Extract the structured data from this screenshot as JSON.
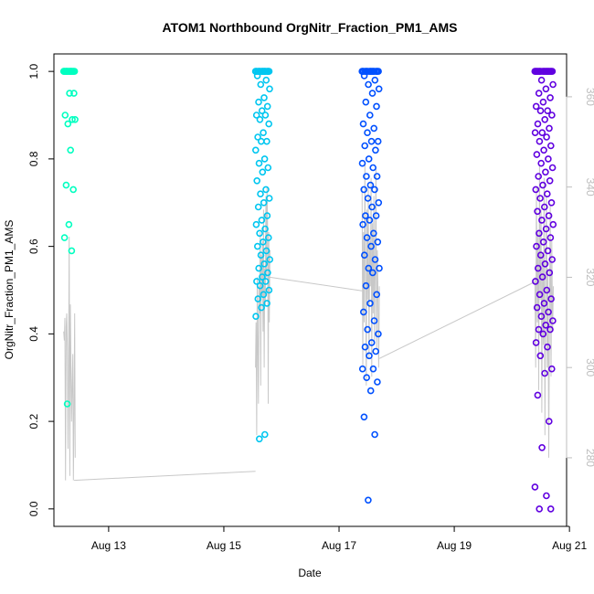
{
  "chart_data": {
    "type": "scatter",
    "title": "ATOM1 Northbound OrgNitr_Fraction_PM1_AMS",
    "xlabel": "Date",
    "ylabel": "OrgNitr_Fraction_PM1_AMS",
    "x_ticks": [
      {
        "label": "Aug 13",
        "day": 13
      },
      {
        "label": "Aug 15",
        "day": 15
      },
      {
        "label": "Aug 17",
        "day": 17
      },
      {
        "label": "Aug 19",
        "day": 19
      },
      {
        "label": "Aug 21",
        "day": 21
      }
    ],
    "xlim_days": [
      12.05,
      20.95
    ],
    "ylim": [
      -0.04,
      1.04
    ],
    "y_ticks": [
      "0.0",
      "0.2",
      "0.4",
      "0.6",
      "0.8",
      "1.0"
    ],
    "y2lim": [
      264.8,
      369.5
    ],
    "y2_ticks": [
      "280",
      "300",
      "320",
      "340",
      "360"
    ],
    "y2_color": "#bdbdbd",
    "line_color": "#c8c8c8",
    "segments": [
      {
        "color": "#00ffc0",
        "x_range": [
          12.22,
          12.42
        ],
        "values": [
          1.0,
          1.0,
          1.0,
          1.0,
          1.0,
          1.0,
          1.0,
          1.0,
          1.0,
          1.0,
          1.0,
          1.0,
          1.0,
          1.0,
          1.0,
          1.0,
          0.95,
          0.95,
          0.9,
          0.89,
          0.88,
          0.89,
          0.82,
          0.74,
          0.73,
          0.65,
          0.62,
          0.59,
          0.24
        ],
        "alt_x_range": [
          12.22,
          12.42
        ],
        "alt_values": [
          308,
          306,
          311,
          275,
          309,
          312,
          304,
          282,
          297,
          329,
          276,
          314,
          300,
          288,
          296,
          303,
          275,
          290,
          312,
          280
        ]
      },
      {
        "color": "#00c6f0",
        "x_range": [
          15.55,
          15.8
        ],
        "values": [
          1.0,
          1.0,
          1.0,
          1.0,
          1.0,
          1.0,
          1.0,
          1.0,
          1.0,
          1.0,
          1.0,
          1.0,
          1.0,
          1.0,
          1.0,
          1.0,
          1.0,
          1.0,
          0.99,
          0.98,
          0.97,
          0.96,
          0.94,
          0.93,
          0.92,
          0.91,
          0.9,
          0.9,
          0.89,
          0.88,
          0.86,
          0.85,
          0.84,
          0.84,
          0.82,
          0.8,
          0.79,
          0.78,
          0.77,
          0.75,
          0.73,
          0.72,
          0.71,
          0.7,
          0.69,
          0.67,
          0.66,
          0.65,
          0.64,
          0.63,
          0.62,
          0.61,
          0.6,
          0.59,
          0.58,
          0.57,
          0.56,
          0.55,
          0.54,
          0.53,
          0.52,
          0.52,
          0.51,
          0.5,
          0.49,
          0.48,
          0.47,
          0.46,
          0.44,
          0.17,
          0.16
        ],
        "alt_x_range": [
          15.55,
          15.8
        ],
        "alt_values": [
          300,
          310,
          285,
          320,
          306,
          292,
          318,
          312,
          330,
          296,
          325,
          316,
          328,
          308,
          335,
          300,
          322,
          314,
          338,
          320,
          340,
          330,
          292,
          330,
          310,
          326
        ]
      },
      {
        "color": "#0050ff",
        "x_range": [
          17.4,
          17.7
        ],
        "values": [
          1.0,
          1.0,
          1.0,
          1.0,
          1.0,
          1.0,
          1.0,
          1.0,
          1.0,
          1.0,
          1.0,
          1.0,
          1.0,
          1.0,
          1.0,
          1.0,
          1.0,
          1.0,
          0.99,
          0.98,
          0.97,
          0.96,
          0.95,
          0.93,
          0.92,
          0.9,
          0.88,
          0.87,
          0.86,
          0.84,
          0.84,
          0.83,
          0.82,
          0.8,
          0.79,
          0.78,
          0.76,
          0.76,
          0.74,
          0.73,
          0.73,
          0.71,
          0.7,
          0.69,
          0.67,
          0.67,
          0.66,
          0.65,
          0.63,
          0.62,
          0.61,
          0.6,
          0.58,
          0.57,
          0.55,
          0.55,
          0.54,
          0.51,
          0.49,
          0.47,
          0.45,
          0.43,
          0.41,
          0.4,
          0.38,
          0.37,
          0.36,
          0.35,
          0.32,
          0.32,
          0.3,
          0.29,
          0.27,
          0.21,
          0.17,
          0.02
        ],
        "alt_x_range": [
          17.4,
          17.7
        ],
        "alt_values": [
          340,
          300,
          330,
          310,
          345,
          320,
          296,
          335,
          315,
          340,
          302,
          328,
          318,
          342,
          298,
          332,
          312,
          338,
          306,
          322,
          344,
          304,
          326,
          316,
          300,
          318
        ]
      },
      {
        "color": "#6000e0",
        "x_range": [
          20.4,
          20.72
        ],
        "values": [
          1.0,
          1.0,
          1.0,
          1.0,
          1.0,
          1.0,
          1.0,
          1.0,
          1.0,
          1.0,
          1.0,
          1.0,
          1.0,
          1.0,
          1.0,
          1.0,
          1.0,
          1.0,
          1.0,
          1.0,
          0.98,
          0.97,
          0.96,
          0.95,
          0.94,
          0.93,
          0.92,
          0.91,
          0.91,
          0.9,
          0.89,
          0.88,
          0.87,
          0.86,
          0.86,
          0.85,
          0.84,
          0.83,
          0.82,
          0.81,
          0.8,
          0.79,
          0.78,
          0.77,
          0.76,
          0.75,
          0.74,
          0.73,
          0.72,
          0.71,
          0.7,
          0.69,
          0.68,
          0.67,
          0.66,
          0.65,
          0.64,
          0.63,
          0.62,
          0.61,
          0.6,
          0.59,
          0.58,
          0.57,
          0.56,
          0.55,
          0.54,
          0.53,
          0.52,
          0.5,
          0.49,
          0.48,
          0.47,
          0.46,
          0.45,
          0.44,
          0.43,
          0.42,
          0.41,
          0.41,
          0.4,
          0.38,
          0.37,
          0.35,
          0.32,
          0.31,
          0.26,
          0.2,
          0.14,
          0.05,
          0.03,
          0.0,
          0.0
        ],
        "alt_x_range": [
          20.4,
          20.72
        ],
        "alt_values": [
          320,
          300,
          340,
          310,
          330,
          295,
          345,
          315,
          335,
          290,
          325,
          305,
          342,
          285,
          318,
          338,
          300,
          322,
          280,
          312,
          336,
          298,
          328,
          308,
          318
        ]
      }
    ],
    "connectors": [
      {
        "x1": 12.4,
        "y1": 275,
        "x2": 15.55,
        "y2": 277
      },
      {
        "x1": 15.8,
        "y1": 320,
        "x2": 17.4,
        "y2": 317
      },
      {
        "x1": 17.7,
        "y1": 302,
        "x2": 20.4,
        "y2": 319
      }
    ]
  }
}
